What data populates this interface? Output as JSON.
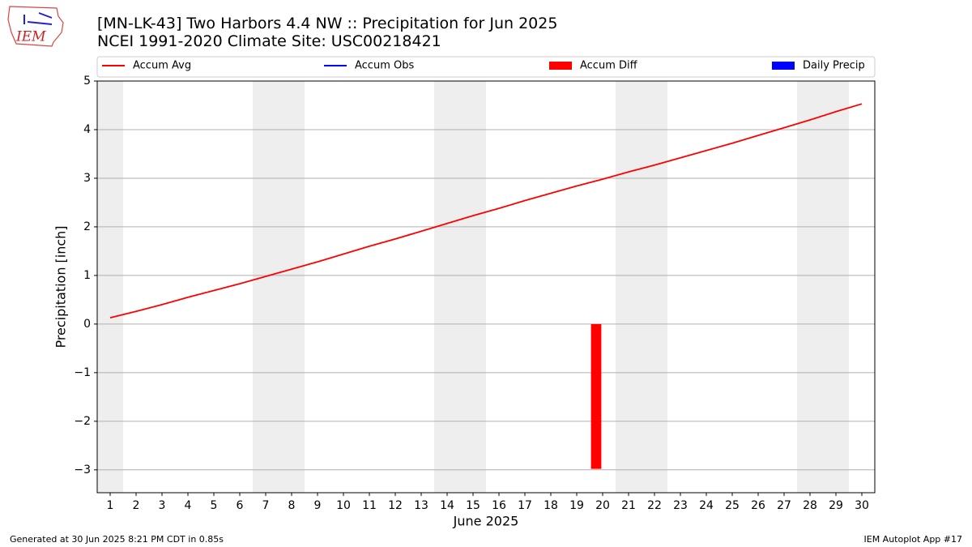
{
  "chart_data": {
    "type": "line",
    "title": "[MN-LK-43] Two Harbors 4.4 NW :: Precipitation for Jun 2025",
    "subtitle": "NCEI 1991-2020 Climate Site: USC00218421",
    "x_label": "June 2025",
    "y_label": "Precipitation [inch]",
    "footer_left": "Generated at 30 Jun 2025 8:21 PM CDT in 0.85s",
    "footer_right": "IEM Autoplot App #17",
    "logo_text": "IEM",
    "x": [
      1,
      2,
      3,
      4,
      5,
      6,
      7,
      8,
      9,
      10,
      11,
      12,
      13,
      14,
      15,
      16,
      17,
      18,
      19,
      20,
      21,
      22,
      23,
      24,
      25,
      26,
      27,
      28,
      29,
      30
    ],
    "series": [
      {
        "name": "Accum Avg",
        "color": "#ff0000",
        "kind": "line",
        "values": [
          0.13,
          0.26,
          0.4,
          0.55,
          0.69,
          0.83,
          0.98,
          1.13,
          1.28,
          1.44,
          1.6,
          1.75,
          1.91,
          2.07,
          2.23,
          2.38,
          2.54,
          2.69,
          2.84,
          2.98,
          3.13,
          3.27,
          3.42,
          3.57,
          3.72,
          3.88,
          4.04,
          4.2,
          4.37,
          4.53
        ]
      },
      {
        "name": "Accum Obs",
        "color": "#0000ff",
        "kind": "line",
        "values": [
          null,
          null,
          null,
          null,
          null,
          null,
          null,
          null,
          null,
          null,
          null,
          null,
          null,
          null,
          null,
          null,
          null,
          null,
          null,
          null,
          null,
          null,
          null,
          null,
          null,
          null,
          null,
          null,
          null,
          null
        ]
      },
      {
        "name": "Accum Diff",
        "color": "#ff0000",
        "kind": "bar",
        "values": [
          null,
          null,
          null,
          null,
          null,
          null,
          null,
          null,
          null,
          null,
          null,
          null,
          null,
          null,
          null,
          null,
          null,
          null,
          null,
          -2.98,
          null,
          null,
          null,
          null,
          null,
          null,
          null,
          null,
          null,
          null
        ]
      },
      {
        "name": "Daily Precip",
        "color": "#0000ff",
        "kind": "bar",
        "values": [
          null,
          null,
          null,
          null,
          null,
          null,
          null,
          null,
          null,
          null,
          null,
          null,
          null,
          null,
          null,
          null,
          null,
          null,
          null,
          null,
          null,
          null,
          null,
          null,
          null,
          null,
          null,
          null,
          null,
          null
        ]
      }
    ],
    "weekend_days": [
      1,
      7,
      8,
      14,
      15,
      21,
      22,
      28,
      29
    ],
    "xlim": [
      0.5,
      30.5
    ],
    "xticks": [
      1,
      2,
      3,
      4,
      5,
      6,
      7,
      8,
      9,
      10,
      11,
      12,
      13,
      14,
      15,
      16,
      17,
      18,
      19,
      20,
      21,
      22,
      23,
      24,
      25,
      26,
      27,
      28,
      29,
      30
    ],
    "ylim": [
      -3.47,
      5
    ],
    "yticks": [
      {
        "value": -3,
        "label": "−3"
      },
      {
        "value": -2,
        "label": "−2"
      },
      {
        "value": -1,
        "label": "−1"
      },
      0,
      1,
      2,
      3,
      4,
      5
    ],
    "grid": true
  }
}
